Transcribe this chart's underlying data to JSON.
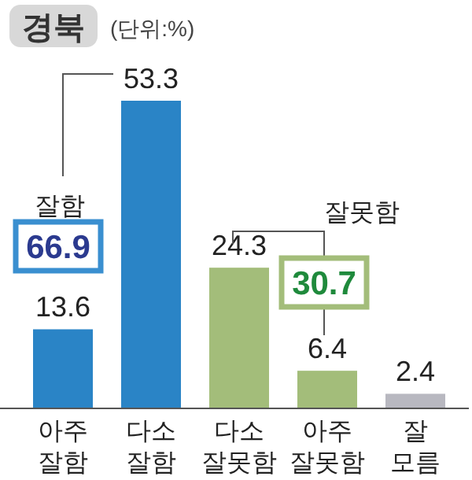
{
  "chart_data": {
    "type": "bar",
    "title": "경북",
    "subtitle": "(단위:%)",
    "categories": [
      "아주\n잘함",
      "다소\n잘함",
      "다소\n잘못함",
      "아주\n잘못함",
      "잘\n모름"
    ],
    "values": [
      13.6,
      53.3,
      24.3,
      6.4,
      2.4
    ],
    "colors": [
      "#2a84c6",
      "#2a84c6",
      "#a3bd7a",
      "#a3bd7a",
      "#b8b8c0"
    ],
    "data_labels": true,
    "annotations": [
      "잘함",
      "66.9",
      "잘못함",
      "30.7"
    ]
  }
}
